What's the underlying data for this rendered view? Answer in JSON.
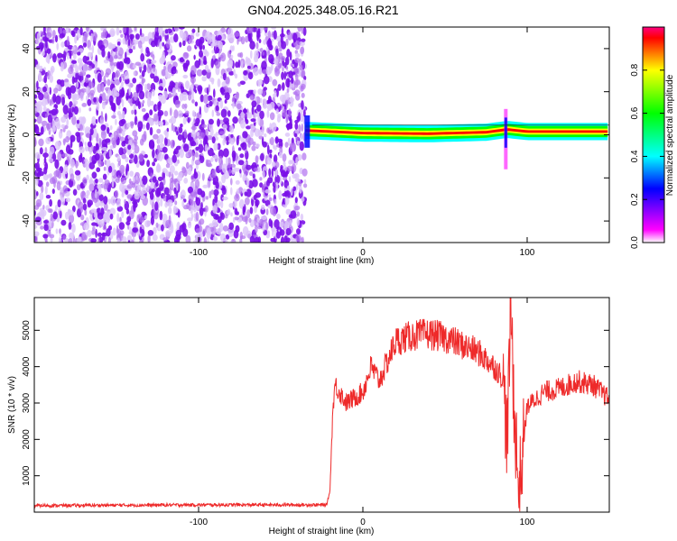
{
  "title": "GN04.2025.348.05.16.R21",
  "chart_data": [
    {
      "type": "heatmap",
      "xlabel": "Height of straight line (km)",
      "ylabel": "Frequency (Hz)",
      "xlim": [
        -200,
        150
      ],
      "ylim": [
        -50,
        50
      ],
      "xticks": [
        -100,
        0,
        100
      ],
      "yticks": [
        -40,
        -20,
        0,
        20,
        40
      ],
      "grid": false,
      "colorbar": {
        "label": "Normalized spectral amplitude",
        "range": [
          0,
          1
        ],
        "ticks": [
          0.0,
          0.2,
          0.4,
          0.6,
          0.8
        ],
        "colormap": [
          "#ffffff",
          "#ff00ff",
          "#0000ff",
          "#00ffff",
          "#00ff00",
          "#ffff00",
          "#ff0000"
        ]
      },
      "regions": {
        "noise_x_range": [
          -200,
          -35
        ],
        "noise_color": "#7a10e8",
        "carrier_x_range": [
          -35,
          150
        ],
        "carrier_frequency": [
          [
            -35,
            2
          ],
          [
            -20,
            1.5
          ],
          [
            0,
            0.8
          ],
          [
            40,
            0.5
          ],
          [
            75,
            1.2
          ],
          [
            88,
            2.5
          ],
          [
            100,
            1.5
          ],
          [
            150,
            1.5
          ]
        ],
        "burst_x": 87
      }
    },
    {
      "type": "line",
      "xlabel": "Height of straight line (km)",
      "ylabel": "SNR (10 * v/v)",
      "xlim": [
        -200,
        150
      ],
      "ylim": [
        0,
        5900
      ],
      "xticks": [
        -100,
        0,
        100
      ],
      "yticks": [
        1000,
        2000,
        3000,
        4000,
        5000
      ],
      "grid": false,
      "series": [
        {
          "color": "#ee2a2a",
          "points": [
            [
              -200,
              180
            ],
            [
              -100,
              200
            ],
            [
              -22,
              200
            ],
            [
              -20,
              600
            ],
            [
              -19,
              2000
            ],
            [
              -18,
              3000
            ],
            [
              -17,
              3500
            ],
            [
              -10,
              3000
            ],
            [
              0,
              3300
            ],
            [
              5,
              4000
            ],
            [
              10,
              3600
            ],
            [
              20,
              4700
            ],
            [
              30,
              4850
            ],
            [
              40,
              4900
            ],
            [
              50,
              4800
            ],
            [
              60,
              4600
            ],
            [
              70,
              4400
            ],
            [
              80,
              4000
            ],
            [
              85,
              3700
            ],
            [
              88,
              2000
            ],
            [
              90,
              5800
            ],
            [
              92,
              3000
            ],
            [
              95,
              500
            ],
            [
              98,
              2000
            ],
            [
              100,
              2900
            ],
            [
              110,
              3300
            ],
            [
              120,
              3400
            ],
            [
              130,
              3600
            ],
            [
              140,
              3500
            ],
            [
              150,
              3100
            ]
          ]
        }
      ]
    }
  ]
}
